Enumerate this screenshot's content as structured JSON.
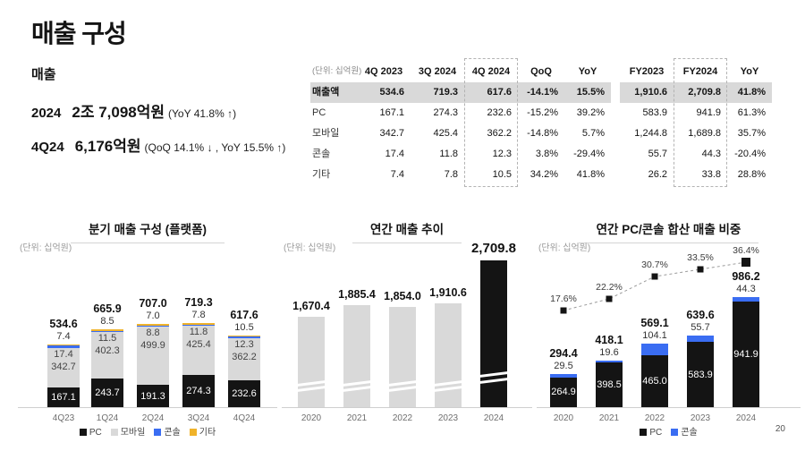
{
  "page": {
    "title": "매출 구성",
    "page_number": "20"
  },
  "summary": {
    "heading": "매출",
    "lines": [
      {
        "label": "2024",
        "value": "2조 7,098억원",
        "note": "(YoY 41.8% ↑)"
      },
      {
        "label": "4Q24",
        "value": "6,176억원",
        "note": "(QoQ 14.1% ↓ , YoY 15.5% ↑)"
      }
    ]
  },
  "table": {
    "unit_label": "(단위: 십억원)",
    "columns": [
      "4Q 2023",
      "3Q 2024",
      "4Q 2024",
      "QoQ",
      "YoY",
      "FY2023",
      "FY2024",
      "YoY"
    ],
    "highlight_columns": [
      "4Q 2024",
      "FY2024"
    ],
    "rows": [
      {
        "label": "매출액",
        "highlight": true,
        "values": [
          "534.6",
          "719.3",
          "617.6",
          "-14.1%",
          "15.5%",
          "1,910.6",
          "2,709.8",
          "41.8%"
        ]
      },
      {
        "label": "PC",
        "values": [
          "167.1",
          "274.3",
          "232.6",
          "-15.2%",
          "39.2%",
          "583.9",
          "941.9",
          "61.3%"
        ]
      },
      {
        "label": "모바일",
        "values": [
          "342.7",
          "425.4",
          "362.2",
          "-14.8%",
          "5.7%",
          "1,244.8",
          "1,689.8",
          "35.7%"
        ]
      },
      {
        "label": "콘솔",
        "values": [
          "17.4",
          "11.8",
          "12.3",
          "3.8%",
          "-29.4%",
          "55.7",
          "44.3",
          "-20.4%"
        ]
      },
      {
        "label": "기타",
        "values": [
          "7.4",
          "7.8",
          "10.5",
          "34.2%",
          "41.8%",
          "26.2",
          "33.8",
          "28.8%"
        ]
      }
    ]
  },
  "chart_data": [
    {
      "type": "bar",
      "stacked": true,
      "title": "분기 매출 구성 (플랫폼)",
      "unit_label": "(단위: 십억원)",
      "categories": [
        "4Q23",
        "1Q24",
        "2Q24",
        "3Q24",
        "4Q24"
      ],
      "series": [
        {
          "name": "PC",
          "color": "#141414",
          "values": [
            167.1,
            243.7,
            191.3,
            274.3,
            232.6
          ]
        },
        {
          "name": "모바일",
          "color": "#d9d9d9",
          "values": [
            342.7,
            402.3,
            499.9,
            425.4,
            362.2
          ]
        },
        {
          "name": "콘솔",
          "color": "#3a6df2",
          "values": [
            17.4,
            11.5,
            8.8,
            11.8,
            12.3
          ]
        },
        {
          "name": "기타",
          "color": "#f0b32a",
          "values": [
            7.4,
            8.5,
            7.0,
            7.8,
            10.5
          ]
        }
      ],
      "totals": [
        534.6,
        665.9,
        707.0,
        719.3,
        617.6
      ],
      "legend_position": "bottom",
      "grid": false
    },
    {
      "type": "bar",
      "title": "연간 매출 추이",
      "unit_label": "(단위: 십억원)",
      "categories": [
        "2020",
        "2021",
        "2022",
        "2023",
        "2024"
      ],
      "values": [
        1670.4,
        1885.4,
        1854.0,
        1910.6,
        2709.8
      ],
      "value_labels": [
        "1,670.4",
        "1,885.4",
        "1,854.0",
        "1,910.6",
        "2,709.8"
      ],
      "highlight_index": 4,
      "bar_color": "#d9d9d9",
      "highlight_color": "#141414",
      "axis_break_marks": true,
      "grid": false
    },
    {
      "type": "bar",
      "stacked": true,
      "combo_line": true,
      "title": "연간 PC/콘솔 합산 매출 비중",
      "unit_label": "(단위: 십억원)",
      "categories": [
        "2020",
        "2021",
        "2022",
        "2023",
        "2024"
      ],
      "series": [
        {
          "name": "PC",
          "color": "#141414",
          "values": [
            264.9,
            398.5,
            465.0,
            583.9,
            941.9
          ]
        },
        {
          "name": "콘솔",
          "color": "#3a6df2",
          "values": [
            29.5,
            19.6,
            104.1,
            55.7,
            44.3
          ]
        }
      ],
      "totals": [
        294.4,
        418.1,
        569.1,
        639.6,
        986.2
      ],
      "line": {
        "name": "PC/콘솔 매출 비중",
        "values_pct": [
          17.6,
          22.2,
          30.7,
          33.5,
          36.4
        ],
        "labels": [
          "17.6%",
          "22.2%",
          "30.7%",
          "33.5%",
          "36.4%"
        ],
        "style": "dashed",
        "marker": "square",
        "color": "#141414"
      },
      "legend_position": "bottom",
      "grid": false
    }
  ],
  "colors": {
    "pc": "#141414",
    "mobile": "#d9d9d9",
    "console": "#3a6df2",
    "etc": "#f0b32a",
    "table_highlight": "#d9d9d9",
    "axis": "#cfcfcf",
    "dashed_box": "#b3b3b3"
  }
}
